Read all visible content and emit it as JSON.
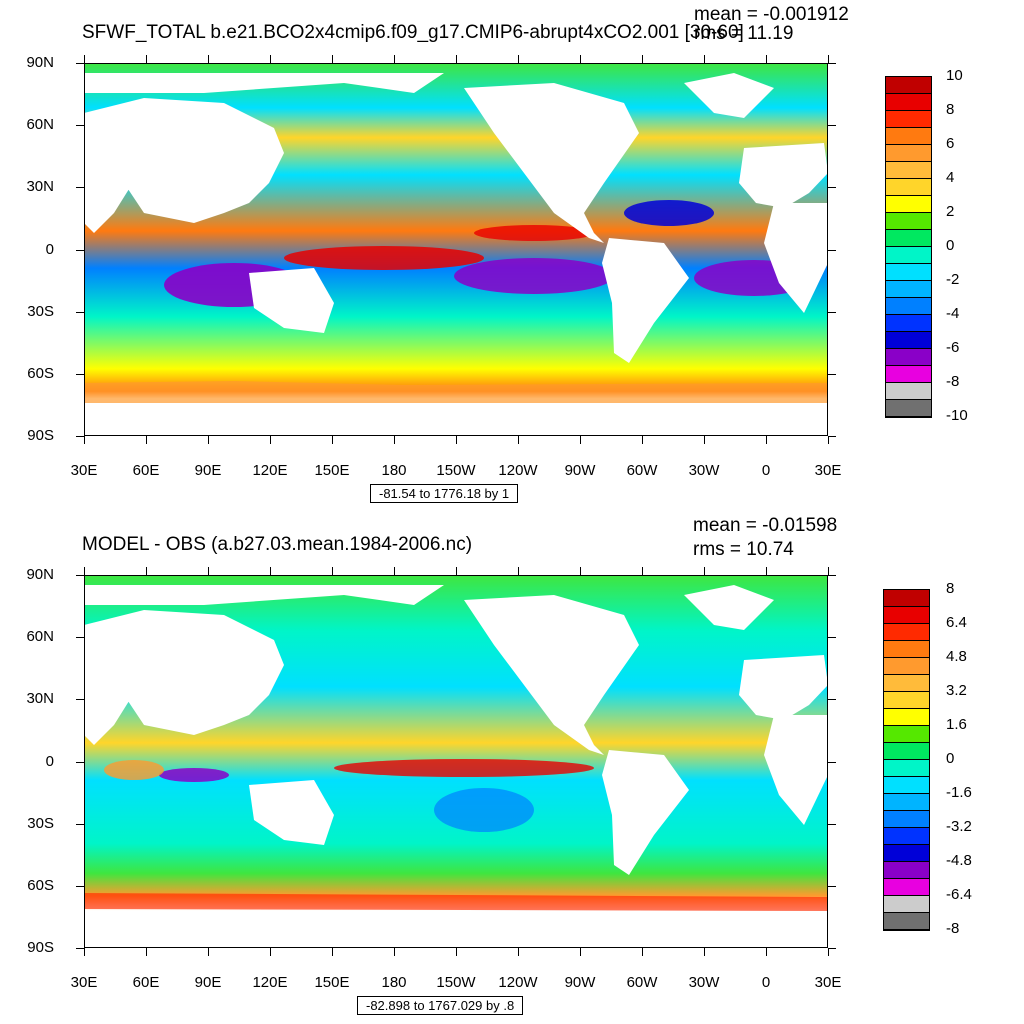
{
  "panels": [
    {
      "title": "SFWF_TOTAL b.e21.BCO2x4cmip6.f09_g17.CMIP6-abrupt4xCO2.001 [30-60]",
      "mean": "mean = -0.001912",
      "rms": "rms = 11.19",
      "contour_info": "-81.54 to 1776.18 by 1",
      "colorbar_labels": [
        "10",
        "8",
        "6",
        "4",
        "2",
        "0",
        "-2",
        "-4",
        "-6",
        "-8",
        "-10"
      ],
      "colorbar_colors": [
        "#c00000",
        "#e80000",
        "#ff2a00",
        "#ff7a10",
        "#ff9a2e",
        "#ffbb3a",
        "#ffd52a",
        "#ffff00",
        "#55e800",
        "#00e860",
        "#00f5c8",
        "#00e0ff",
        "#00b4ff",
        "#0080ff",
        "#0033ff",
        "#0000d8",
        "#8a00c8",
        "#e800e0",
        "#cccccc",
        "#707070"
      ]
    },
    {
      "title": "MODEL - OBS (a.b27.03.mean.1984-2006.nc)",
      "mean": "mean = -0.01598",
      "rms": "rms = 10.74",
      "contour_info": "-82.898 to 1767.029 by .8",
      "colorbar_labels": [
        "8",
        "6.4",
        "4.8",
        "3.2",
        "1.6",
        "0",
        "-1.6",
        "-3.2",
        "-4.8",
        "-6.4",
        "-8"
      ],
      "colorbar_colors": [
        "#c00000",
        "#e80000",
        "#ff2a00",
        "#ff7a10",
        "#ff9a2e",
        "#ffbb3a",
        "#ffd52a",
        "#ffff00",
        "#55e800",
        "#00e860",
        "#00f5c8",
        "#00e0ff",
        "#00b4ff",
        "#0080ff",
        "#0033ff",
        "#0000d8",
        "#8a00c8",
        "#e800e0",
        "#cccccc",
        "#707070"
      ]
    }
  ],
  "lat_labels": [
    "90N",
    "60N",
    "30N",
    "0",
    "30S",
    "60S",
    "90S"
  ],
  "lon_labels": [
    "30E",
    "60E",
    "90E",
    "120E",
    "150E",
    "180",
    "150W",
    "120W",
    "90W",
    "60W",
    "30W",
    "0",
    "30E"
  ],
  "colors": {
    "land": "#ffffff",
    "arctic": "#3fe63f"
  }
}
